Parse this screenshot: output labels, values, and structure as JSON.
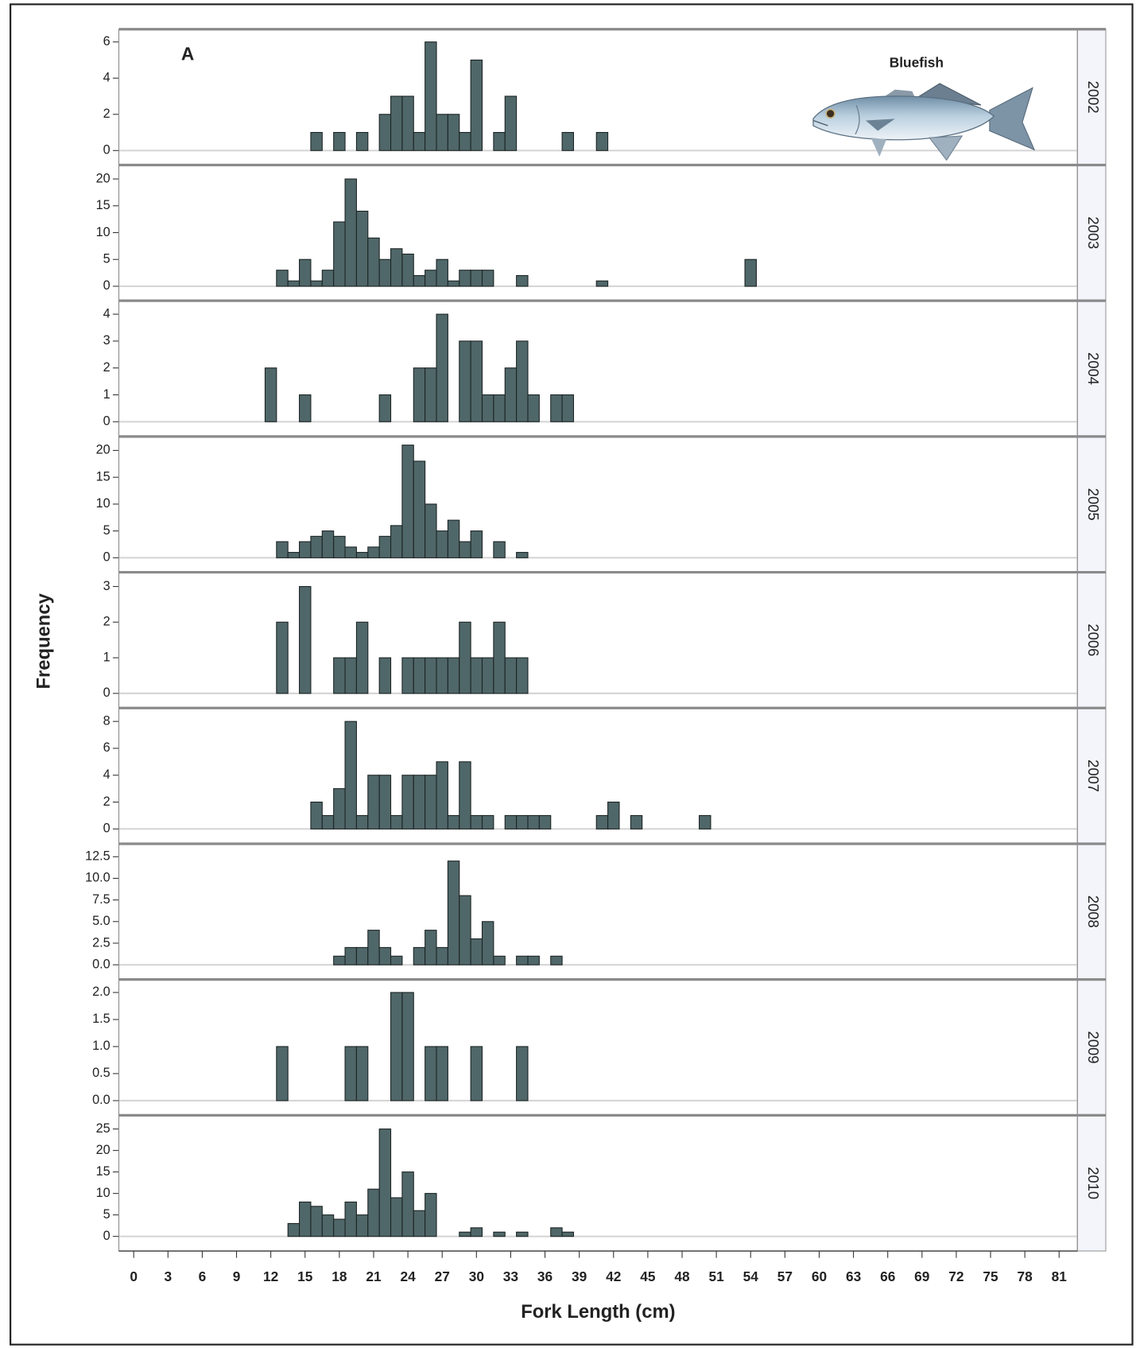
{
  "tag": "A",
  "annotation": "Bluefish",
  "x_label": "Fork Length (cm)",
  "y_label": "Frequency",
  "xlim": [
    -1.3,
    82.6
  ],
  "xticks": [
    0,
    3,
    6,
    9,
    12,
    15,
    18,
    21,
    24,
    27,
    30,
    33,
    36,
    39,
    42,
    45,
    48,
    51,
    54,
    57,
    60,
    63,
    66,
    69,
    72,
    75,
    78,
    81
  ],
  "chart_data": [
    {
      "type": "bar",
      "title": "2002",
      "color": "#506769",
      "x": [
        16,
        18,
        20,
        22,
        23,
        24,
        25,
        26,
        27,
        28,
        29,
        30,
        32,
        33,
        38,
        41
      ],
      "values": [
        1,
        1,
        1,
        2,
        3,
        3,
        1,
        6,
        2,
        2,
        1,
        5,
        1,
        3,
        1,
        1
      ],
      "ylim": [
        -0.8,
        6.7
      ],
      "yticks": [
        0,
        2,
        4,
        6
      ]
    },
    {
      "type": "bar",
      "title": "2003",
      "color": "#506769",
      "x": [
        13,
        14,
        15,
        16,
        17,
        18,
        19,
        20,
        21,
        22,
        23,
        24,
        25,
        26,
        27,
        28,
        29,
        30,
        31,
        34,
        41,
        54
      ],
      "values": [
        3,
        1,
        5,
        1,
        3,
        12,
        20,
        14,
        9,
        5,
        7,
        6,
        2,
        3,
        5,
        1,
        3,
        3,
        3,
        2,
        1,
        5
      ],
      "ylim": [
        -2.7,
        22.6
      ],
      "yticks": [
        0,
        5,
        10,
        15,
        20
      ]
    },
    {
      "type": "bar",
      "title": "2004",
      "color": "#506769",
      "x": [
        12,
        15,
        22,
        25,
        26,
        27,
        29,
        30,
        31,
        32,
        33,
        34,
        35,
        37,
        38
      ],
      "values": [
        2,
        1,
        1,
        2,
        2,
        4,
        3,
        3,
        1,
        1,
        2,
        3,
        1,
        1,
        1
      ],
      "ylim": [
        -0.55,
        4.5
      ],
      "yticks": [
        0,
        1,
        2,
        3,
        4
      ]
    },
    {
      "type": "bar",
      "title": "2005",
      "color": "#506769",
      "x": [
        13,
        14,
        15,
        16,
        17,
        18,
        19,
        20,
        21,
        22,
        23,
        24,
        25,
        26,
        27,
        28,
        29,
        30,
        32,
        34
      ],
      "values": [
        3,
        1,
        3,
        4,
        5,
        4,
        2,
        1,
        2,
        4,
        6,
        21,
        18,
        10,
        5,
        7,
        3,
        5,
        3,
        1
      ],
      "ylim": [
        -2.7,
        22.6
      ],
      "yticks": [
        0,
        5,
        10,
        15,
        20
      ]
    },
    {
      "type": "bar",
      "title": "2006",
      "color": "#506769",
      "x": [
        13,
        15,
        18,
        19,
        20,
        22,
        24,
        25,
        26,
        27,
        28,
        29,
        30,
        31,
        32,
        33,
        34
      ],
      "values": [
        2,
        3,
        1,
        1,
        2,
        1,
        1,
        1,
        1,
        1,
        1,
        2,
        1,
        1,
        2,
        1,
        1
      ],
      "ylim": [
        -0.41,
        3.4
      ],
      "yticks": [
        0,
        1,
        2,
        3
      ]
    },
    {
      "type": "bar",
      "title": "2007",
      "color": "#506769",
      "x": [
        16,
        17,
        18,
        19,
        20,
        21,
        22,
        23,
        24,
        25,
        26,
        27,
        28,
        29,
        30,
        31,
        33,
        34,
        35,
        36,
        41,
        42,
        44,
        50
      ],
      "values": [
        2,
        1,
        3,
        8,
        1,
        4,
        4,
        1,
        4,
        4,
        4,
        5,
        1,
        5,
        1,
        1,
        1,
        1,
        1,
        1,
        1,
        2,
        1,
        1
      ],
      "ylim": [
        -1.1,
        9
      ],
      "yticks": [
        0,
        2,
        4,
        6,
        8
      ]
    },
    {
      "type": "bar",
      "title": "2008",
      "color": "#506769",
      "x": [
        18,
        19,
        20,
        21,
        22,
        23,
        25,
        26,
        27,
        28,
        29,
        30,
        31,
        32,
        34,
        35,
        37
      ],
      "values": [
        1,
        2,
        2,
        4,
        2,
        1,
        2,
        4,
        2,
        12,
        8,
        3,
        5,
        1,
        1,
        1,
        1
      ],
      "ylim": [
        -1.7,
        14
      ],
      "yticks": [
        {
          "value": 0,
          "label": "0.0"
        },
        {
          "value": 2.5,
          "label": "2.5"
        },
        {
          "value": 5,
          "label": "5.0"
        },
        {
          "value": 7.5,
          "label": "7.5"
        },
        {
          "value": 10,
          "label": "10.0"
        },
        {
          "value": 12.5,
          "label": "12.5"
        }
      ]
    },
    {
      "type": "bar",
      "title": "2009",
      "color": "#506769",
      "x": [
        13,
        19,
        20,
        23,
        24,
        26,
        27,
        30,
        34
      ],
      "values": [
        1,
        1,
        1,
        2,
        2,
        1,
        1,
        1,
        1
      ],
      "ylim": [
        -0.27,
        2.24
      ],
      "yticks": [
        {
          "value": 0,
          "label": "0.0"
        },
        {
          "value": 0.5,
          "label": "0.5"
        },
        {
          "value": 1,
          "label": "1.0"
        },
        {
          "value": 1.5,
          "label": "1.5"
        },
        {
          "value": 2,
          "label": "2.0"
        }
      ]
    },
    {
      "type": "bar",
      "title": "2010",
      "color": "#506769",
      "x": [
        14,
        15,
        16,
        17,
        18,
        19,
        20,
        21,
        22,
        23,
        24,
        25,
        26,
        29,
        30,
        32,
        34,
        37,
        38
      ],
      "values": [
        3,
        8,
        7,
        5,
        4,
        8,
        5,
        11,
        25,
        9,
        15,
        6,
        10,
        1,
        2,
        1,
        1,
        2,
        1
      ],
      "ylim": [
        -3.4,
        28.2
      ],
      "yticks": [
        0,
        5,
        10,
        15,
        20,
        25
      ]
    }
  ]
}
